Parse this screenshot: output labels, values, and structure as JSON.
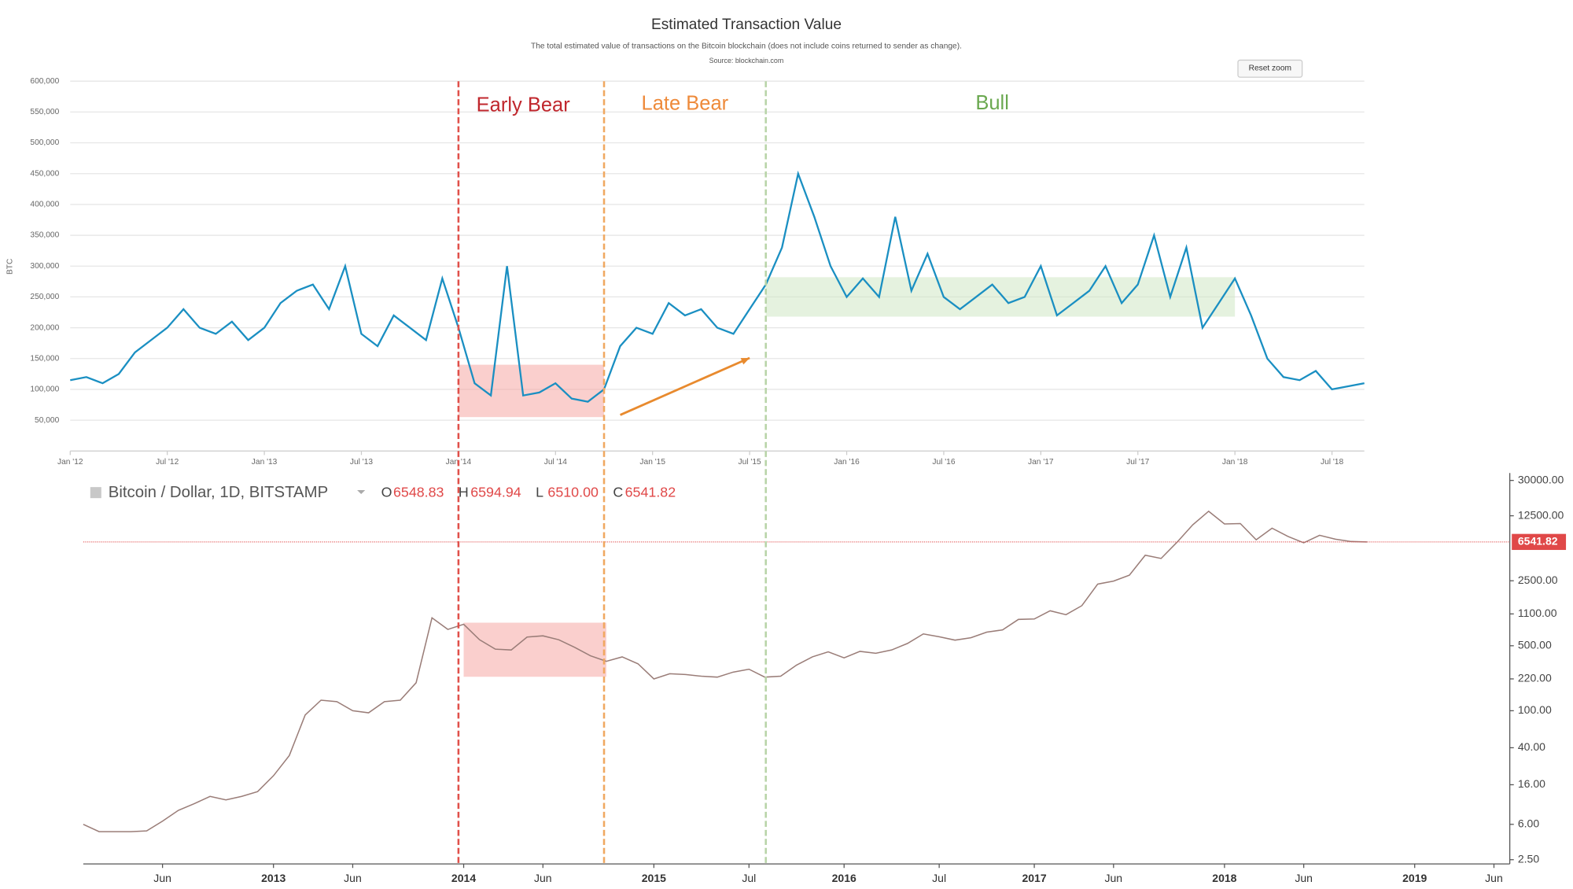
{
  "chart_data": [
    {
      "type": "line",
      "title": "Estimated Transaction Value",
      "subtitle": "The total estimated value of transactions on the Bitcoin blockchain (does not include coins returned to sender as change).",
      "source": "Source: blockchain.com",
      "button": "Reset zoom",
      "y_label": "BTC",
      "grid": true,
      "xlim": [
        "2012-01",
        "2018-09"
      ],
      "ylim": [
        0,
        600000
      ],
      "xticks": [
        {
          "value": "2012-01",
          "label": "Jan '12"
        },
        {
          "value": "2012-07",
          "label": "Jul '12"
        },
        {
          "value": "2013-01",
          "label": "Jan '13"
        },
        {
          "value": "2013-07",
          "label": "Jul '13"
        },
        {
          "value": "2014-01",
          "label": "Jan '14"
        },
        {
          "value": "2014-07",
          "label": "Jul '14"
        },
        {
          "value": "2015-01",
          "label": "Jan '15"
        },
        {
          "value": "2015-07",
          "label": "Jul '15"
        },
        {
          "value": "2016-01",
          "label": "Jan '16"
        },
        {
          "value": "2016-07",
          "label": "Jul '16"
        },
        {
          "value": "2017-01",
          "label": "Jan '17"
        },
        {
          "value": "2017-07",
          "label": "Jul '17"
        },
        {
          "value": "2018-01",
          "label": "Jan '18"
        },
        {
          "value": "2018-07",
          "label": "Jul '18"
        }
      ],
      "yticks": [
        {
          "value": 50000,
          "label": "50,000"
        },
        {
          "value": 100000,
          "label": "100,000"
        },
        {
          "value": 150000,
          "label": "150,000"
        },
        {
          "value": 200000,
          "label": "200,000"
        },
        {
          "value": 250000,
          "label": "250,000"
        },
        {
          "value": 300000,
          "label": "300,000"
        },
        {
          "value": 350000,
          "label": "350,000"
        },
        {
          "value": 400000,
          "label": "400,000"
        },
        {
          "value": 450000,
          "label": "450,000"
        },
        {
          "value": 500000,
          "label": "500,000"
        },
        {
          "value": 550000,
          "label": "550,000"
        },
        {
          "value": 600000,
          "label": "600,000"
        }
      ],
      "x": [
        "2012-01",
        "2012-02",
        "2012-03",
        "2012-04",
        "2012-05",
        "2012-06",
        "2012-07",
        "2012-08",
        "2012-09",
        "2012-10",
        "2012-11",
        "2012-12",
        "2013-01",
        "2013-02",
        "2013-03",
        "2013-04",
        "2013-05",
        "2013-06",
        "2013-07",
        "2013-08",
        "2013-09",
        "2013-10",
        "2013-11",
        "2013-12",
        "2014-01",
        "2014-02",
        "2014-03",
        "2014-04",
        "2014-05",
        "2014-06",
        "2014-07",
        "2014-08",
        "2014-09",
        "2014-10",
        "2014-11",
        "2014-12",
        "2015-01",
        "2015-02",
        "2015-03",
        "2015-04",
        "2015-05",
        "2015-06",
        "2015-07",
        "2015-08",
        "2015-09",
        "2015-10",
        "2015-11",
        "2015-12",
        "2016-01",
        "2016-02",
        "2016-03",
        "2016-04",
        "2016-05",
        "2016-06",
        "2016-07",
        "2016-08",
        "2016-09",
        "2016-10",
        "2016-11",
        "2016-12",
        "2017-01",
        "2017-02",
        "2017-03",
        "2017-04",
        "2017-05",
        "2017-06",
        "2017-07",
        "2017-08",
        "2017-09",
        "2017-10",
        "2017-11",
        "2017-12",
        "2018-01",
        "2018-02",
        "2018-03",
        "2018-04",
        "2018-05",
        "2018-06",
        "2018-07",
        "2018-08",
        "2018-09"
      ],
      "series": [
        {
          "color": "#1a8fc2",
          "values": [
            115000,
            120000,
            110000,
            125000,
            160000,
            180000,
            200000,
            230000,
            200000,
            190000,
            210000,
            180000,
            200000,
            240000,
            260000,
            270000,
            230000,
            300000,
            190000,
            170000,
            220000,
            200000,
            180000,
            280000,
            200000,
            110000,
            90000,
            300000,
            90000,
            95000,
            110000,
            85000,
            80000,
            100000,
            170000,
            200000,
            190000,
            240000,
            220000,
            230000,
            200000,
            190000,
            230000,
            270000,
            330000,
            450000,
            380000,
            300000,
            250000,
            280000,
            250000,
            380000,
            260000,
            320000,
            250000,
            230000,
            250000,
            270000,
            240000,
            250000,
            300000,
            220000,
            240000,
            260000,
            300000,
            240000,
            270000,
            350000,
            250000,
            330000,
            200000,
            240000,
            280000,
            220000,
            150000,
            120000,
            115000,
            130000,
            100000,
            105000,
            110000
          ]
        }
      ],
      "markers": [
        {
          "x": "2014-01",
          "color": "#e0504a"
        },
        {
          "x": "2014-10",
          "color": "#f0a860"
        },
        {
          "x": "2015-08",
          "color": "#b8d4a8"
        }
      ],
      "regions": [
        {
          "x0": "2014-01",
          "x1": "2014-10",
          "y0": 55000,
          "y1": 140000,
          "color": "#f6a8a4"
        },
        {
          "x0": "2015-08",
          "x1": "2018-01",
          "y0": 218000,
          "y1": 282000,
          "color": "#cfe8c4"
        }
      ],
      "annotations": [
        {
          "text": "Early Bear",
          "x": "2014-05",
          "y": 560000,
          "color": "#c0272d"
        },
        {
          "text": "Late Bear",
          "x": "2015-03",
          "y": 562000,
          "color": "#ee8a3a"
        },
        {
          "text": "Bull",
          "x": "2016-10",
          "y": 563000,
          "color": "#6aa84f"
        }
      ],
      "arrow": {
        "x0": "2014-11",
        "y0": 58500,
        "x1": "2015-07",
        "y1": 151000,
        "color": "#e88a2e"
      }
    },
    {
      "type": "line",
      "title": "Bitcoin / Dollar, 1D, BITSTAMP",
      "log_scale": true,
      "ohlc": [
        {
          "label": "O",
          "value": 6548.83
        },
        {
          "label": "H",
          "value": 6594.94
        },
        {
          "label": "L",
          "value": 6510,
          "value_label": "6510.00"
        },
        {
          "label": "C",
          "value": 6541.82
        }
      ],
      "last_price": 6541.82,
      "last_price_color": "#e04848",
      "xlim": [
        "2012-01",
        "2019-07"
      ],
      "ylim": [
        2.25,
        36000
      ],
      "xticks": [
        {
          "value": "2012-06",
          "label": "Jun"
        },
        {
          "value": "2013-01",
          "label": "2013"
        },
        {
          "value": "2013-06",
          "label": "Jun"
        },
        {
          "value": "2014-01",
          "label": "2014"
        },
        {
          "value": "2014-06",
          "label": "Jun"
        },
        {
          "value": "2015-01",
          "label": "2015"
        },
        {
          "value": "2015-07",
          "label": "Jul"
        },
        {
          "value": "2016-01",
          "label": "2016"
        },
        {
          "value": "2016-07",
          "label": "Jul"
        },
        {
          "value": "2017-01",
          "label": "2017"
        },
        {
          "value": "2017-06",
          "label": "Jun"
        },
        {
          "value": "2018-01",
          "label": "2018"
        },
        {
          "value": "2018-06",
          "label": "Jun"
        },
        {
          "value": "2019-01",
          "label": "2019"
        },
        {
          "value": "2019-06",
          "label": "Jun"
        }
      ],
      "yticks": [
        {
          "value": 2.5,
          "label": "2.50"
        },
        {
          "value": 6,
          "label": "6.00"
        },
        {
          "value": 16,
          "label": "16.00"
        },
        {
          "value": 40,
          "label": "40.00"
        },
        {
          "value": 100,
          "label": "100.00"
        },
        {
          "value": 220,
          "label": "220.00"
        },
        {
          "value": 500,
          "label": "500.00"
        },
        {
          "value": 1100,
          "label": "1100.00"
        },
        {
          "value": 2500,
          "label": "2500.00"
        },
        {
          "value": 12500,
          "label": "12500.00"
        },
        {
          "value": 30000,
          "label": "30000.00"
        }
      ],
      "x": [
        "2012-01",
        "2012-02",
        "2012-03",
        "2012-04",
        "2012-05",
        "2012-06",
        "2012-07",
        "2012-08",
        "2012-09",
        "2012-10",
        "2012-11",
        "2012-12",
        "2013-01",
        "2013-02",
        "2013-03",
        "2013-04",
        "2013-05",
        "2013-06",
        "2013-07",
        "2013-08",
        "2013-09",
        "2013-10",
        "2013-11",
        "2013-12",
        "2014-01",
        "2014-02",
        "2014-03",
        "2014-04",
        "2014-05",
        "2014-06",
        "2014-07",
        "2014-08",
        "2014-09",
        "2014-10",
        "2014-11",
        "2014-12",
        "2015-01",
        "2015-02",
        "2015-03",
        "2015-04",
        "2015-05",
        "2015-06",
        "2015-07",
        "2015-08",
        "2015-09",
        "2015-10",
        "2015-11",
        "2015-12",
        "2016-01",
        "2016-02",
        "2016-03",
        "2016-04",
        "2016-05",
        "2016-06",
        "2016-07",
        "2016-08",
        "2016-09",
        "2016-10",
        "2016-11",
        "2016-12",
        "2017-01",
        "2017-02",
        "2017-03",
        "2017-04",
        "2017-05",
        "2017-06",
        "2017-07",
        "2017-08",
        "2017-09",
        "2017-10",
        "2017-11",
        "2017-12",
        "2018-01",
        "2018-02",
        "2018-03",
        "2018-04",
        "2018-05",
        "2018-06",
        "2018-07",
        "2018-08",
        "2018-09",
        "2018-10"
      ],
      "series": [
        {
          "color": "#9a7d78",
          "values": [
            6,
            5,
            5,
            5,
            5.1,
            6.5,
            8.5,
            10,
            12,
            11,
            12,
            13.5,
            20,
            33,
            90,
            130,
            125,
            100,
            95,
            125,
            130,
            200,
            1000,
            750,
            850,
            580,
            460,
            450,
            620,
            640,
            580,
            480,
            390,
            340,
            380,
            320,
            220,
            250,
            245,
            235,
            230,
            260,
            280,
            230,
            235,
            310,
            380,
            430,
            370,
            435,
            415,
            450,
            530,
            670,
            625,
            575,
            610,
            700,
            740,
            960,
            970,
            1190,
            1080,
            1350,
            2300,
            2480,
            2870,
            4700,
            4340,
            6470,
            10000,
            14000,
            10200,
            10300,
            6900,
            9200,
            7500,
            6400,
            7700,
            7000,
            6600,
            6540
          ]
        }
      ],
      "regions": [
        {
          "x0": "2014-01",
          "x1": "2014-10",
          "y0": 232,
          "y1": 885,
          "color": "#f6a8a4"
        }
      ]
    }
  ]
}
